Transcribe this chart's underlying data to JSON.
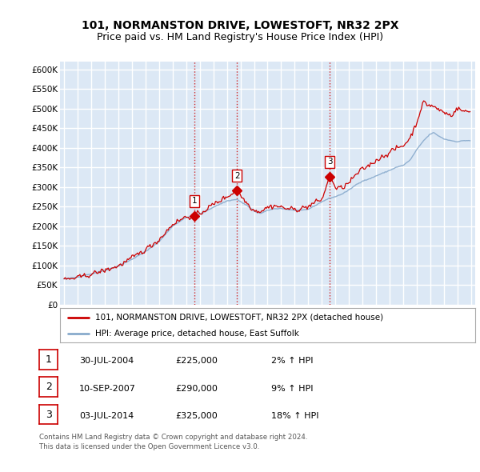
{
  "title": "101, NORMANSTON DRIVE, LOWESTOFT, NR32 2PX",
  "subtitle": "Price paid vs. HM Land Registry's House Price Index (HPI)",
  "ylabel_ticks": [
    "£0",
    "£50K",
    "£100K",
    "£150K",
    "£200K",
    "£250K",
    "£300K",
    "£350K",
    "£400K",
    "£450K",
    "£500K",
    "£550K",
    "£600K"
  ],
  "ylim": [
    0,
    620000
  ],
  "yticks": [
    0,
    50000,
    100000,
    150000,
    200000,
    250000,
    300000,
    350000,
    400000,
    450000,
    500000,
    550000,
    600000
  ],
  "sale_prices": [
    225000,
    290000,
    325000
  ],
  "sale_labels": [
    "1",
    "2",
    "3"
  ],
  "sale_info": [
    {
      "label": "1",
      "date": "30-JUL-2004",
      "price": "£225,000",
      "hpi": "2% ↑ HPI"
    },
    {
      "label": "2",
      "date": "10-SEP-2007",
      "price": "£290,000",
      "hpi": "9% ↑ HPI"
    },
    {
      "label": "3",
      "date": "03-JUL-2014",
      "price": "£325,000",
      "hpi": "18% ↑ HPI"
    }
  ],
  "vline_color": "#cc0000",
  "sale_marker_color": "#cc0000",
  "hpi_line_color": "#88aacc",
  "price_line_color": "#cc0000",
  "legend_label_price": "101, NORMANSTON DRIVE, LOWESTOFT, NR32 2PX (detached house)",
  "legend_label_hpi": "HPI: Average price, detached house, East Suffolk",
  "footer": "Contains HM Land Registry data © Crown copyright and database right 2024.\nThis data is licensed under the Open Government Licence v3.0.",
  "background_color": "#ffffff",
  "plot_bg_color": "#dce8f5",
  "grid_color": "#ffffff",
  "title_fontsize": 10,
  "subtitle_fontsize": 9
}
